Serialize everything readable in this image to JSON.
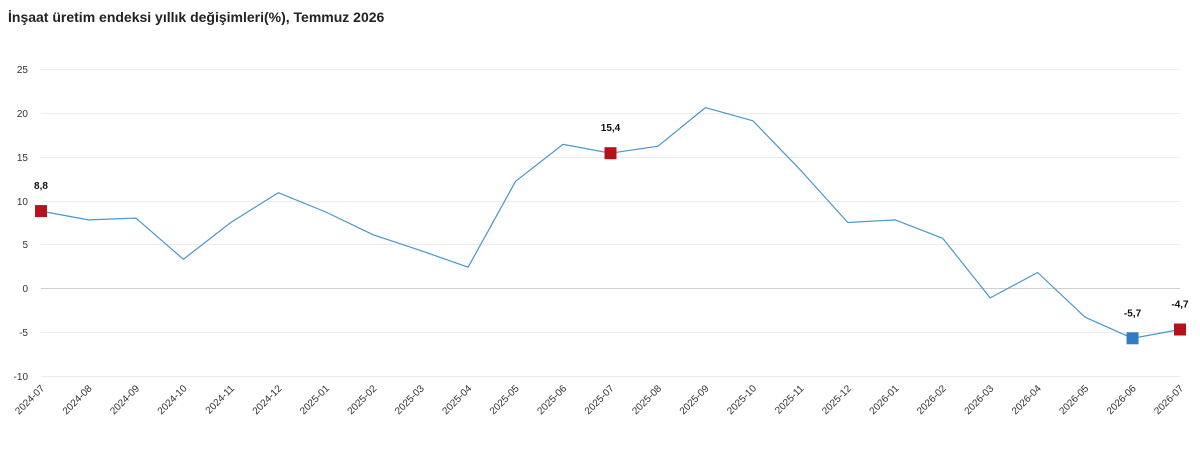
{
  "chart_data": {
    "type": "line",
    "title": "İnşaat üretim endeksi yıllık değişimleri(%), Temmuz 2026",
    "xlabel": "",
    "ylabel": "",
    "ylim": [
      -10,
      25
    ],
    "yticks": [
      25,
      20,
      15,
      10,
      5,
      0,
      -5,
      -10
    ],
    "grid": "horizontal",
    "legend": "none",
    "categories": [
      "2024-07",
      "2024-08",
      "2024-09",
      "2024-10",
      "2024-11",
      "2024-12",
      "2025-01",
      "2025-02",
      "2025-03",
      "2025-04",
      "2025-05",
      "2025-06",
      "2025-07",
      "2025-08",
      "2025-09",
      "2025-10",
      "2025-11",
      "2025-12",
      "2026-01",
      "2026-02",
      "2026-03",
      "2026-04",
      "2026-05",
      "2026-06",
      "2026-07"
    ],
    "series": [
      {
        "values": [
          8.8,
          7.8,
          8.0,
          3.3,
          7.5,
          10.9,
          8.7,
          6.1,
          4.3,
          2.4,
          12.2,
          16.4,
          15.4,
          16.2,
          20.6,
          19.1,
          13.5,
          7.5,
          7.8,
          5.7,
          -1.1,
          1.8,
          -3.3,
          -5.7,
          -4.7
        ],
        "color": "#4a97c9"
      }
    ],
    "highlights": [
      {
        "index": 0,
        "label": "8,8",
        "color": "#b5121b"
      },
      {
        "index": 12,
        "label": "15,4",
        "color": "#b5121b"
      },
      {
        "index": 23,
        "label": "-5,7",
        "color": "#2f7fc0"
      },
      {
        "index": 24,
        "label": "-4,7",
        "color": "#b5121b"
      }
    ]
  }
}
